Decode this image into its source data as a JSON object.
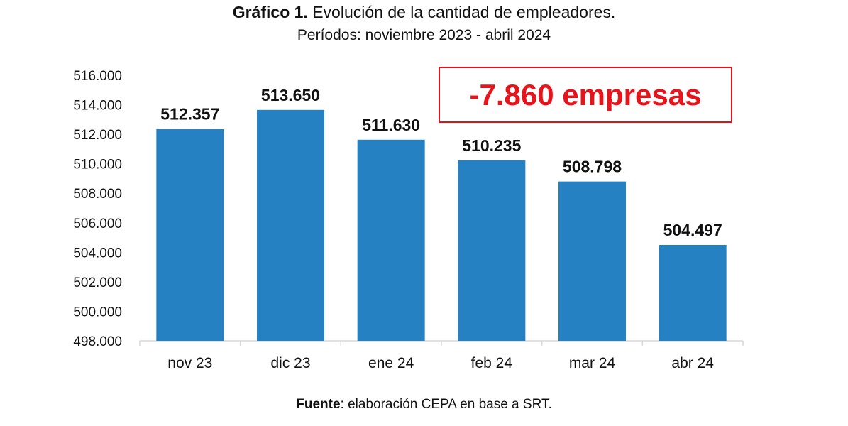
{
  "chart_data": {
    "type": "bar",
    "title_bold": "Gráfico 1.",
    "title": "Evolución de la cantidad de empleadores.",
    "subtitle": "Períodos: noviembre 2023 - abril 2024",
    "categories": [
      "nov 23",
      "dic 23",
      "ene 24",
      "feb 24",
      "mar 24",
      "abr 24"
    ],
    "values": [
      512357,
      513650,
      511630,
      510235,
      508798,
      504497
    ],
    "data_labels": [
      "512.357",
      "513.650",
      "511.630",
      "510.235",
      "508.798",
      "504.497"
    ],
    "ylim": [
      498000,
      516000
    ],
    "yticks": [
      "498.000",
      "500.000",
      "502.000",
      "504.000",
      "506.000",
      "508.000",
      "510.000",
      "512.000",
      "514.000",
      "516.000"
    ],
    "grid": false,
    "bar_color": "#2681c2",
    "annotation": "-7.860 empresas",
    "annotation_color": "#e8141b",
    "source_bold": "Fuente",
    "source": ": elaboración CEPA en base a SRT."
  }
}
